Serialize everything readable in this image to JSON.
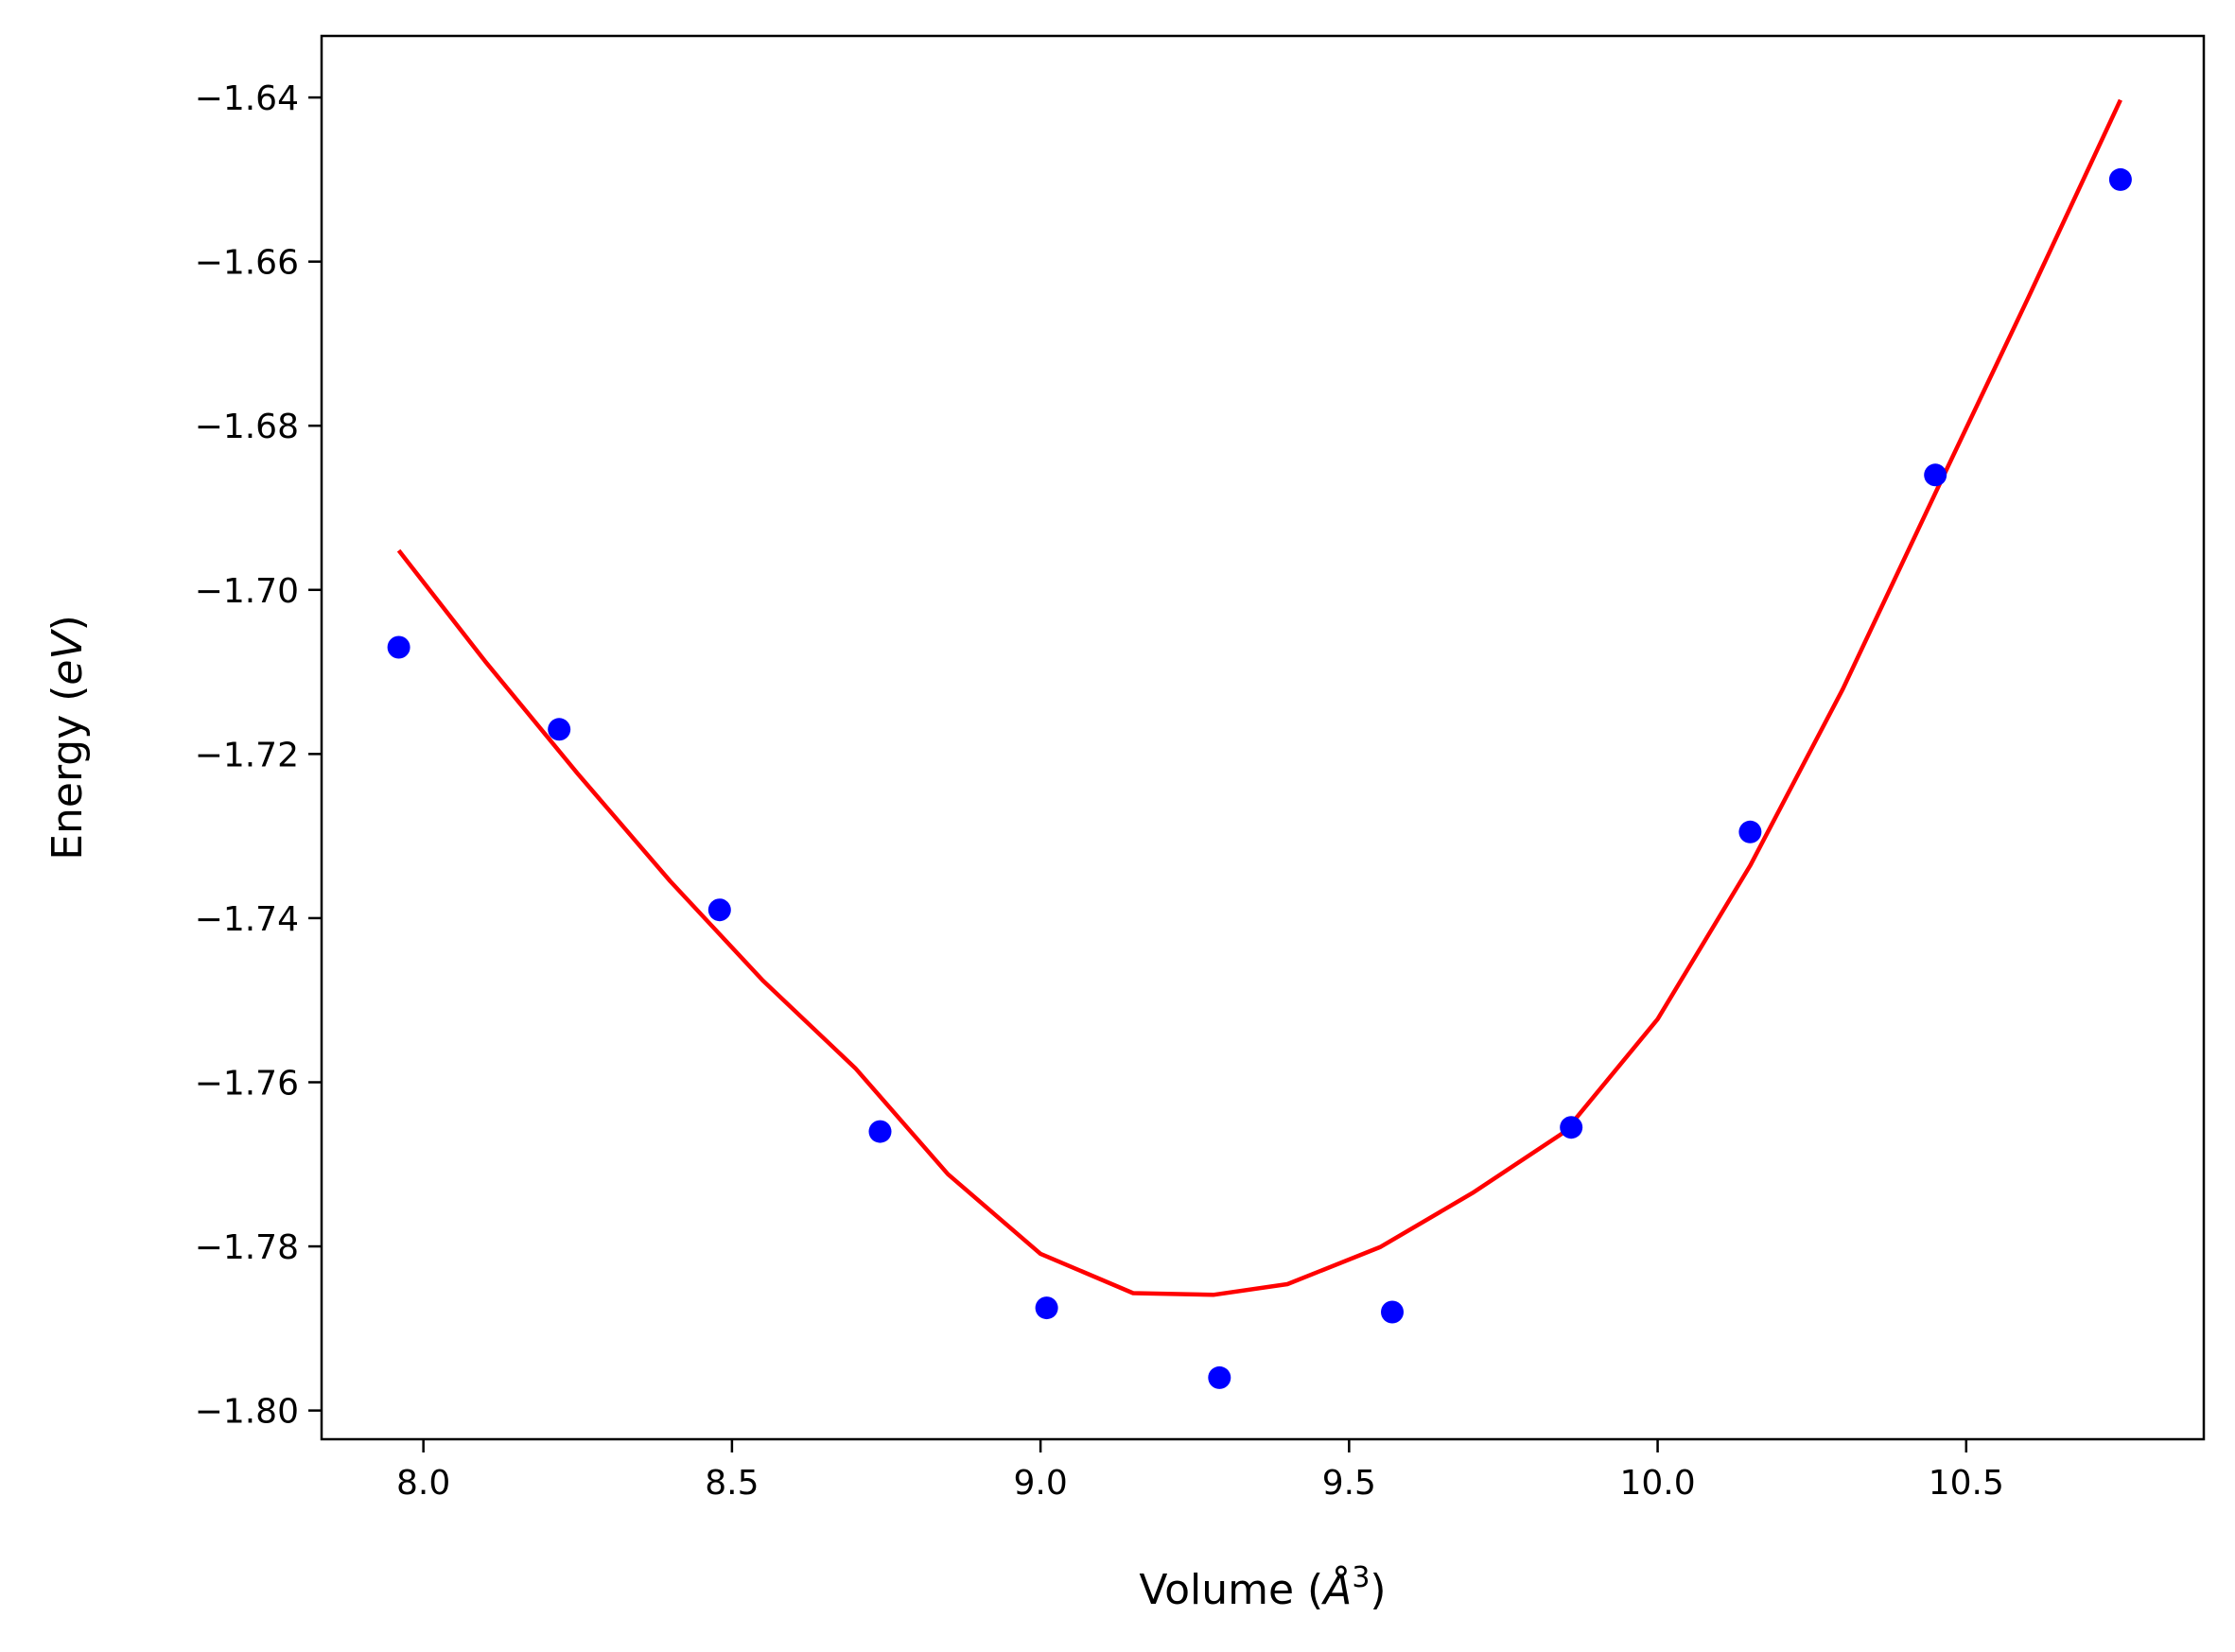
{
  "chart_data": {
    "type": "scatter",
    "xlabel": {
      "prefix": "Volume (",
      "unit": "Å",
      "power": "3",
      "suffix": ")"
    },
    "ylabel": {
      "prefix": "Energy (",
      "unit": "eV",
      "suffix": ")"
    },
    "xlim": [
      7.835,
      10.885
    ],
    "ylim": [
      -1.8035,
      -1.6325
    ],
    "x_ticks": [
      8.0,
      8.5,
      9.0,
      9.5,
      10.0,
      10.5
    ],
    "x_tick_labels": [
      "8.0",
      "8.5",
      "9.0",
      "9.5",
      "10.0",
      "10.5"
    ],
    "y_ticks": [
      -1.64,
      -1.66,
      -1.68,
      -1.7,
      -1.72,
      -1.74,
      -1.76,
      -1.78,
      -1.8
    ],
    "y_tick_labels": [
      "−1.64",
      "−1.66",
      "−1.68",
      "−1.70",
      "−1.72",
      "−1.74",
      "−1.76",
      "−1.78",
      "−1.80"
    ],
    "grid": false,
    "series": [
      {
        "kind": "scatter",
        "color": "#0000ff",
        "x": [
          7.96,
          8.22,
          8.48,
          8.74,
          9.01,
          9.29,
          9.57,
          9.86,
          10.15,
          10.45,
          10.75
        ],
        "y": [
          -1.707,
          -1.717,
          -1.739,
          -1.766,
          -1.7875,
          -1.796,
          -1.788,
          -1.7655,
          -1.7295,
          -1.686,
          -1.65
        ]
      },
      {
        "kind": "line",
        "color": "#ff0000",
        "x": [
          7.96,
          8.1,
          8.25,
          8.4,
          8.55,
          8.7,
          8.85,
          9.0,
          9.15,
          9.28,
          9.4,
          9.55,
          9.7,
          9.85,
          10.0,
          10.15,
          10.3,
          10.45,
          10.6,
          10.75
        ],
        "y": [
          -1.6952,
          -1.7087,
          -1.7224,
          -1.7355,
          -1.7476,
          -1.7583,
          -1.7712,
          -1.7809,
          -1.7857,
          -1.7859,
          -1.7846,
          -1.7801,
          -1.7735,
          -1.766,
          -1.7523,
          -1.7336,
          -1.7121,
          -1.6882,
          -1.6645,
          -1.6403
        ]
      }
    ]
  }
}
